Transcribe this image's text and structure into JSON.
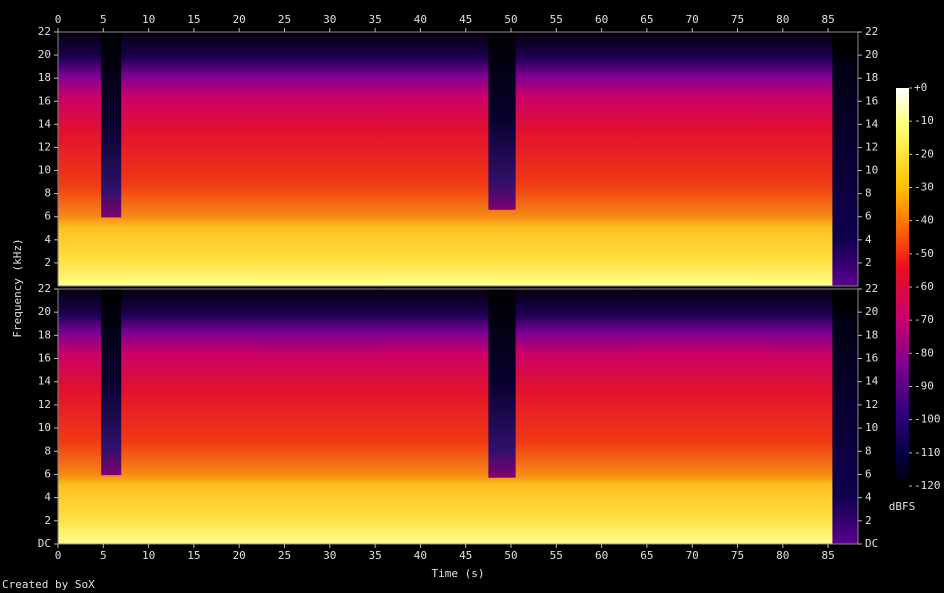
{
  "chart_data": {
    "type": "spectrogram",
    "x_label": "Time (s)",
    "y_label": "Frequency (kHz)",
    "footer": "Created by SoX",
    "xlim": [
      0,
      88.3
    ],
    "xticks": [
      0,
      5,
      10,
      15,
      20,
      25,
      30,
      35,
      40,
      45,
      50,
      55,
      60,
      65,
      70,
      75,
      80,
      85
    ],
    "panels": [
      {
        "ylim": [
          0,
          22
        ],
        "yticks": [
          2,
          4,
          6,
          8,
          10,
          12,
          14,
          16,
          18,
          20,
          22
        ]
      },
      {
        "ylim": [
          0,
          22
        ],
        "yticks": [
          {
            "value": 0,
            "label": "DC"
          },
          2,
          4,
          6,
          8,
          10,
          12,
          14,
          16,
          18,
          20,
          22
        ]
      }
    ],
    "colorbar": {
      "label": "dBFS",
      "lim": [
        -120,
        0
      ],
      "ticks": [
        {
          "value": 0,
          "label": "+0"
        },
        -10,
        -20,
        -30,
        -40,
        -50,
        -60,
        -70,
        -80,
        -90,
        -100,
        -110,
        -120
      ]
    }
  }
}
